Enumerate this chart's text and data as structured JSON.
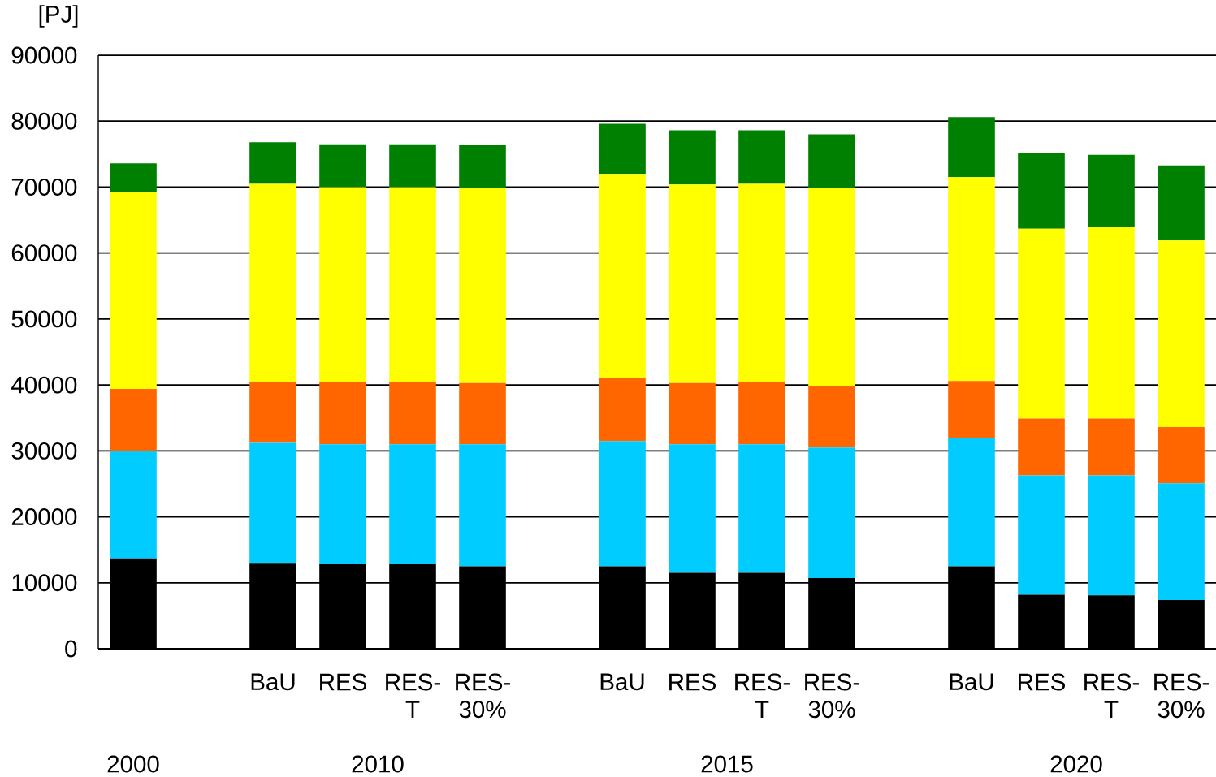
{
  "chart_data": {
    "type": "bar",
    "stacked": true,
    "ylabel": "[PJ]",
    "categories": [
      null,
      null,
      "BaU",
      "RES",
      "RES-T",
      "RES-30%",
      null,
      "BaU",
      "RES",
      "RES-T",
      "RES-30%",
      null,
      "BaU",
      "RES",
      "RES-T",
      "RES-30%"
    ],
    "series": [
      {
        "color": "#000000",
        "values": [
          13700,
          null,
          12900,
          12800,
          12800,
          12500,
          null,
          12500,
          11500,
          11500,
          10700,
          null,
          12500,
          8200,
          8100,
          7400
        ]
      },
      {
        "color": "#00ccff",
        "values": [
          16300,
          null,
          18300,
          18200,
          18200,
          18500,
          null,
          19000,
          19500,
          19500,
          19800,
          null,
          19500,
          18100,
          18200,
          17700
        ]
      },
      {
        "color": "#ff6600",
        "values": [
          9400,
          null,
          9300,
          9400,
          9400,
          9300,
          null,
          9500,
          9300,
          9400,
          9300,
          null,
          8600,
          8600,
          8600,
          8500
        ]
      },
      {
        "color": "#ffff00",
        "values": [
          29900,
          null,
          30000,
          29600,
          29600,
          29600,
          null,
          31000,
          30100,
          30100,
          30000,
          null,
          30900,
          28800,
          29000,
          28300
        ]
      },
      {
        "color": "#008000",
        "values": [
          4300,
          null,
          6300,
          6500,
          6500,
          6500,
          null,
          7600,
          8200,
          8100,
          8200,
          null,
          9100,
          11500,
          11000,
          11400
        ]
      }
    ],
    "annotations": [
      "2000",
      "2010",
      "2015",
      "2020"
    ],
    "ylim": [
      0,
      90000
    ],
    "yticks": [
      0,
      10000,
      20000,
      30000,
      40000,
      50000,
      60000,
      70000,
      80000,
      90000
    ],
    "grid": "y"
  }
}
